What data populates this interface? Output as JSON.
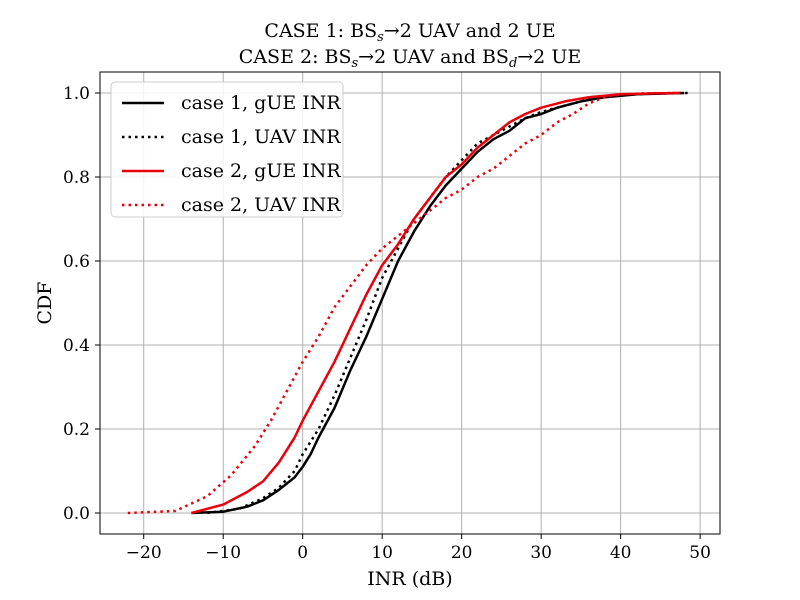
{
  "chart_data": {
    "type": "line",
    "title_line1": {
      "pre": "CASE 1: BS",
      "sub": "s",
      "post": "→2 UAV and 2 UE"
    },
    "title_line2": {
      "pre": "CASE 2: BS",
      "sub1": "s",
      "mid": "→2 UAV and BS",
      "sub2": "d",
      "post": "→2 UE"
    },
    "xlabel": "INR (dB)",
    "ylabel": "CDF",
    "xlim": [
      -25.5,
      52.5
    ],
    "ylim": [
      -0.05,
      1.05
    ],
    "xticks": [
      -20,
      -10,
      0,
      10,
      20,
      30,
      40,
      50
    ],
    "xtick_labels": [
      "−20",
      "−10",
      "0",
      "10",
      "20",
      "30",
      "40",
      "50"
    ],
    "yticks": [
      0.0,
      0.2,
      0.4,
      0.6,
      0.8,
      1.0
    ],
    "ytick_labels": [
      "0.0",
      "0.2",
      "0.4",
      "0.6",
      "0.8",
      "1.0"
    ],
    "grid": true,
    "legend_position": "upper-left",
    "series": [
      {
        "name": "case 1, gUE INR",
        "color": "#000000",
        "style": "solid",
        "x": [
          -14,
          -10,
          -7,
          -5,
          -3,
          -1,
          0,
          1,
          2,
          4,
          6,
          8,
          10,
          12,
          14,
          16,
          18,
          20,
          22,
          24,
          26,
          28,
          30,
          32,
          35,
          38,
          42,
          48
        ],
        "y": [
          0.0,
          0.003,
          0.015,
          0.03,
          0.055,
          0.085,
          0.11,
          0.14,
          0.18,
          0.25,
          0.34,
          0.42,
          0.51,
          0.6,
          0.67,
          0.73,
          0.78,
          0.82,
          0.86,
          0.89,
          0.91,
          0.94,
          0.95,
          0.965,
          0.98,
          0.99,
          0.997,
          1.0
        ]
      },
      {
        "name": "case 1, UAV INR",
        "color": "#000000",
        "style": "dotted",
        "x": [
          -12,
          -8,
          -5,
          -3,
          -1,
          0,
          2,
          4,
          6,
          8,
          10,
          12,
          14,
          16,
          18,
          20,
          22,
          24,
          26,
          28,
          30,
          33,
          36,
          40,
          44,
          48.5
        ],
        "y": [
          0.0,
          0.01,
          0.035,
          0.06,
          0.1,
          0.14,
          0.2,
          0.28,
          0.37,
          0.46,
          0.56,
          0.63,
          0.7,
          0.75,
          0.8,
          0.84,
          0.88,
          0.9,
          0.92,
          0.94,
          0.955,
          0.97,
          0.985,
          0.995,
          0.999,
          1.0
        ]
      },
      {
        "name": "case 2, gUE INR",
        "color": "#e8000b",
        "style": "solid",
        "x": [
          -14,
          -10,
          -7,
          -5,
          -3,
          -1,
          0,
          2,
          4,
          6,
          8,
          10,
          12,
          14,
          16,
          18,
          20,
          22,
          24,
          26,
          28,
          30,
          33,
          36,
          40,
          44,
          47.5
        ],
        "y": [
          0.0,
          0.02,
          0.05,
          0.075,
          0.12,
          0.18,
          0.22,
          0.29,
          0.36,
          0.44,
          0.52,
          0.59,
          0.64,
          0.7,
          0.75,
          0.8,
          0.83,
          0.87,
          0.9,
          0.93,
          0.95,
          0.965,
          0.98,
          0.99,
          0.997,
          0.999,
          1.0
        ]
      },
      {
        "name": "case 2, UAV INR",
        "color": "#e8000b",
        "style": "dotted",
        "x": [
          -22,
          -16,
          -12,
          -9,
          -6,
          -4,
          -2,
          0,
          2,
          4,
          6,
          8,
          10,
          12,
          14,
          16,
          18,
          20,
          22,
          24,
          26,
          28,
          30,
          32,
          34,
          36,
          38,
          40,
          43,
          47
        ],
        "y": [
          0.0,
          0.005,
          0.04,
          0.09,
          0.16,
          0.22,
          0.29,
          0.36,
          0.42,
          0.49,
          0.54,
          0.59,
          0.63,
          0.66,
          0.69,
          0.72,
          0.75,
          0.77,
          0.8,
          0.82,
          0.85,
          0.88,
          0.9,
          0.93,
          0.95,
          0.975,
          0.99,
          0.997,
          0.999,
          1.0
        ]
      }
    ]
  }
}
